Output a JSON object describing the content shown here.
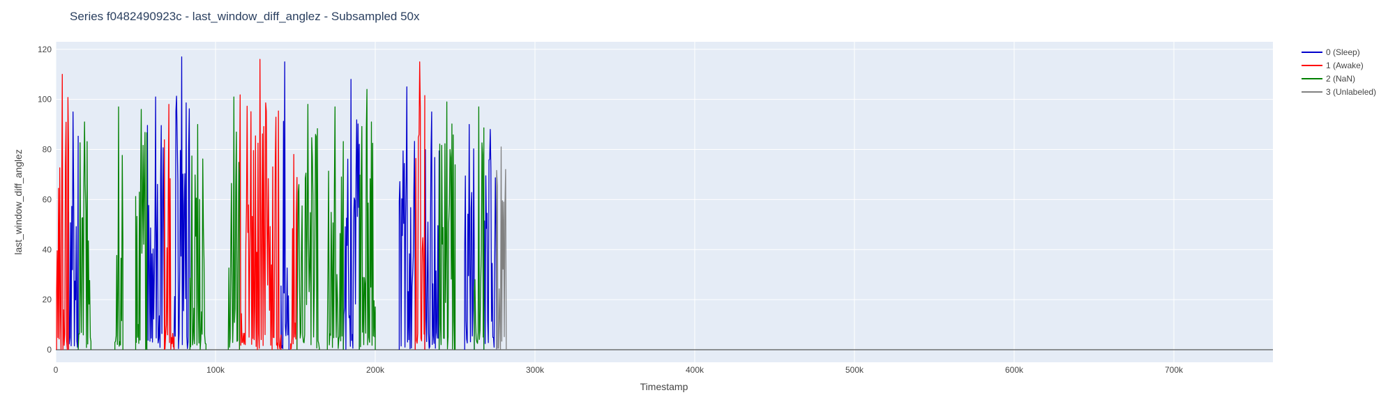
{
  "chart_data": {
    "type": "line",
    "title": "Series f0482490923c - last_window_diff_anglez - Subsampled 50x",
    "xlabel": "Timestamp",
    "ylabel": "last_window_diff_anglez",
    "xlim": [
      0,
      762000
    ],
    "ylim": [
      -5,
      123
    ],
    "x_ticks": [
      0,
      100000,
      200000,
      300000,
      400000,
      500000,
      600000,
      700000
    ],
    "x_tick_labels": [
      "0",
      "100k",
      "200k",
      "300k",
      "400k",
      "500k",
      "600k",
      "700k"
    ],
    "y_ticks": [
      0,
      20,
      40,
      60,
      80,
      100,
      120
    ],
    "y_tick_labels": [
      "0",
      "20",
      "40",
      "60",
      "80",
      "100",
      "120"
    ],
    "grid": true,
    "plot_background": "#e5ecf6",
    "legend_position": "top-right",
    "series": [
      {
        "name": "0 (Sleep)",
        "color": "#0000cc",
        "segments": [
          [
            8000,
            14000,
            95
          ],
          [
            57000,
            68000,
            101
          ],
          [
            74000,
            84000,
            117
          ],
          [
            141000,
            146000,
            115
          ],
          [
            180000,
            190000,
            108
          ],
          [
            215000,
            225000,
            105
          ],
          [
            231000,
            240000,
            95
          ],
          [
            256000,
            262000,
            90
          ],
          [
            268000,
            276000,
            88
          ]
        ]
      },
      {
        "name": "1 (Awake)",
        "color": "#ff0000",
        "segments": [
          [
            500,
            8000,
            110
          ],
          [
            68000,
            74000,
            98
          ],
          [
            115000,
            141000,
            116
          ],
          [
            147000,
            151000,
            78
          ],
          [
            225000,
            231000,
            115
          ]
        ]
      },
      {
        "name": "2 (NaN)",
        "color": "#008000",
        "segments": [
          [
            14000,
            22000,
            91
          ],
          [
            37000,
            42000,
            97
          ],
          [
            50000,
            57000,
            96
          ],
          [
            84000,
            94000,
            90
          ],
          [
            108000,
            115000,
            101
          ],
          [
            151000,
            165000,
            98
          ],
          [
            170000,
            180000,
            97
          ],
          [
            190000,
            200000,
            104
          ],
          [
            240000,
            250000,
            99
          ],
          [
            262000,
            268000,
            97
          ]
        ]
      },
      {
        "name": "3 (Unlabeled)",
        "color": "#808080",
        "segments": [
          [
            276000,
            282000,
            81
          ]
        ]
      }
    ]
  }
}
